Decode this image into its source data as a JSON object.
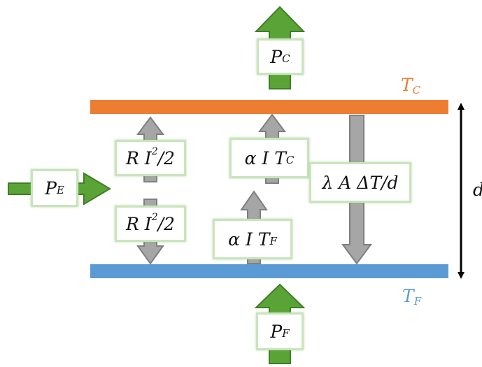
{
  "colors": {
    "hot_plate": "#ed7d31",
    "cold_plate": "#5b9bd5",
    "power_arrow": "#5aa437",
    "power_arrow_stroke": "#3f7e25",
    "flow_arrow": "#a6a6a6",
    "flow_arrow_stroke": "#7f7f7f",
    "label_border": "#c9e4bd",
    "text": "#111111"
  },
  "plates": {
    "hot_temp": {
      "symbol": "T",
      "sub": "C"
    },
    "cold_temp": {
      "symbol": "T",
      "sub": "F"
    },
    "distance": "d"
  },
  "powers": {
    "hot_out": {
      "symbol": "P",
      "sub": "C"
    },
    "electric_in": {
      "symbol": "P",
      "sub": "E"
    },
    "cold_in": {
      "symbol": "P",
      "sub": "F"
    }
  },
  "flows": {
    "joule_top": {
      "main": "R I",
      "sup": "2",
      "tail": "/2"
    },
    "joule_bottom": {
      "main": "R I",
      "sup": "2",
      "tail": "/2"
    },
    "peltier_hot": {
      "main": "α I T",
      "sub": "C"
    },
    "peltier_cold": {
      "main": "α I T",
      "sub": "F"
    },
    "conduction": {
      "main": "λ A ΔT/d"
    }
  }
}
